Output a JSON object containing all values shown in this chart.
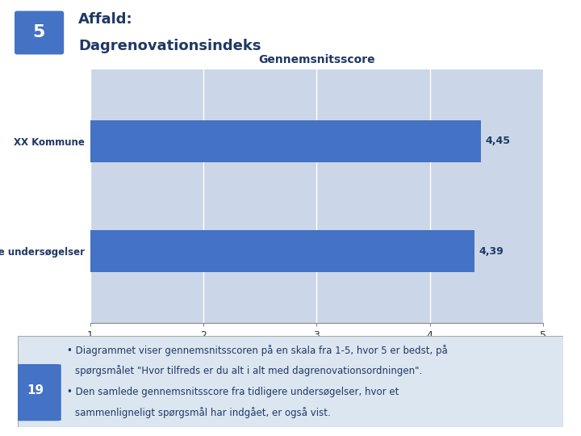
{
  "title": "Gennemsnitsscore",
  "categories": [
    "Tidligere undersøgelser",
    "XX Kommune"
  ],
  "values": [
    4.39,
    4.45
  ],
  "value_labels": [
    "4,39",
    "4,45"
  ],
  "bar_color": "#4472C4",
  "xlim": [
    1,
    5
  ],
  "xticks": [
    1,
    2,
    3,
    4,
    5
  ],
  "chart_bg": "#CBD6E8",
  "slide_bg": "#FFFFFF",
  "header_title_line1": "Affald:",
  "header_title_line2": "Dagrenovationsindeks",
  "header_num": "5",
  "header_num_bg": "#4472C4",
  "bullet1_line1": "Diagrammet viser gennemsnitsscoren på en skala fra 1-5, hvor 5 er bedst, på",
  "bullet1_line2": "spørgsmålet \"Hvor tilfreds er du alt i alt med dagrenovationsordningen\".",
  "bullet2_line1": "Den samlede gennemsnitsscore fra tidligere undersøgelser, hvor et",
  "bullet2_line2": "sammenligneligt spørgsmål har indgået, er også vist.",
  "footer_num": "19",
  "footer_num_bg": "#4472C4",
  "footer_bg": "#DCE6F1",
  "title_fontsize": 10,
  "label_fontsize": 8.5,
  "tick_fontsize": 9,
  "value_fontsize": 9,
  "bullet_fontsize": 8.5,
  "header_title_fontsize": 13,
  "header_num_fontsize": 16,
  "footer_num_fontsize": 11
}
